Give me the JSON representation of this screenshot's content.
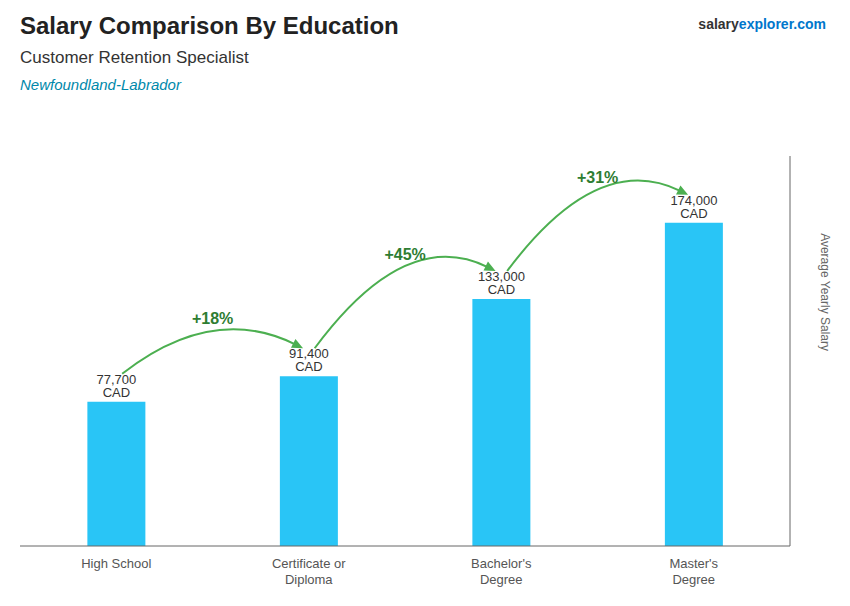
{
  "chart_data": {
    "type": "bar",
    "title": "Salary Comparison By Education",
    "subtitle": [
      "Customer Retention Specialist",
      "Newfoundland-Labrador"
    ],
    "ylabel": "Average Yearly Salary",
    "categories": [
      "High School",
      "Certificate or\nDiploma",
      "Bachelor's\nDegree",
      "Master's\nDegree"
    ],
    "values": [
      77700,
      91400,
      133000,
      174000
    ],
    "value_labels": [
      "77,700 CAD",
      "91,400 CAD",
      "133,000 CAD",
      "174,000 CAD"
    ],
    "data_labels": true,
    "color": "#29c5f6",
    "ylim": [
      0,
      210000
    ],
    "tick_labels": "x",
    "grid": false,
    "annotations": [
      {
        "text": "+18%",
        "from": "High School",
        "to": "Certificate or\nDiploma"
      },
      {
        "text": "+45%",
        "from": "Certificate or\nDiploma",
        "to": "Bachelor's\nDegree"
      },
      {
        "text": "+31%",
        "from": "Bachelor's\nDegree",
        "to": "Master's\nDegree"
      },
      {
        "text": "salary"
      },
      {
        "text": "explorer.com"
      }
    ]
  }
}
